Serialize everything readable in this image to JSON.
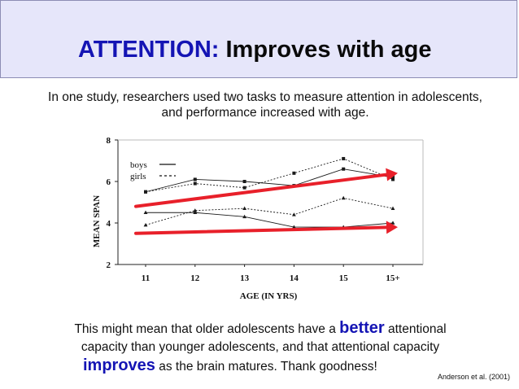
{
  "slide": {
    "title_accent": "ATTENTION:",
    "title_rest": "Improves with age",
    "intro": "In one study, researchers used two tasks to measure attention in adolescents, and performance increased with age.",
    "bottom": {
      "part1": "This might mean that older adolescents have a ",
      "emph1": "better",
      "part2": " attentional",
      "line2": "capacity than younger adolescents, and that attentional capacity",
      "emph2": "improves",
      "part3": " as the brain matures. Thank goodness!"
    },
    "citation": "Anderson et al. (2001)"
  },
  "colors": {
    "title_accent": "#1414b4",
    "box_bg": "#e6e6fa",
    "arrow": "#e8202a",
    "data": "#1a1a1a"
  },
  "chart_data": {
    "type": "line",
    "categories": [
      "11",
      "12",
      "13",
      "14",
      "15",
      "15+"
    ],
    "ylabel": "MEAN SPAN",
    "xlabel": "AGE (IN YRS)",
    "ylim": [
      2,
      8
    ],
    "yticks": [
      "2",
      "4",
      "6",
      "8"
    ],
    "legend": {
      "position": "top-left",
      "entries": [
        {
          "label": "boys",
          "style": "solid"
        },
        {
          "label": "girls",
          "style": "dashed"
        }
      ]
    },
    "series": [
      {
        "task": "upper",
        "group": "boys",
        "style": "solid",
        "marker": "square",
        "values": [
          5.5,
          6.1,
          6.0,
          5.8,
          6.6,
          6.2
        ]
      },
      {
        "task": "upper",
        "group": "girls",
        "style": "dashed",
        "marker": "square",
        "values": [
          5.5,
          5.9,
          5.7,
          6.4,
          7.1,
          6.1
        ]
      },
      {
        "task": "lower",
        "group": "boys",
        "style": "solid",
        "marker": "triangle",
        "values": [
          4.5,
          4.5,
          4.3,
          3.8,
          3.8,
          4.0
        ]
      },
      {
        "task": "lower",
        "group": "girls",
        "style": "dashed",
        "marker": "triangle",
        "values": [
          3.9,
          4.6,
          4.7,
          4.4,
          5.2,
          4.7
        ]
      }
    ],
    "trend_arrows": [
      {
        "from": {
          "x": "11",
          "y": 4.8
        },
        "to": {
          "x": "15+",
          "y": 6.4
        }
      },
      {
        "from": {
          "x": "11",
          "y": 3.5
        },
        "to": {
          "x": "15+",
          "y": 3.8
        }
      }
    ]
  }
}
